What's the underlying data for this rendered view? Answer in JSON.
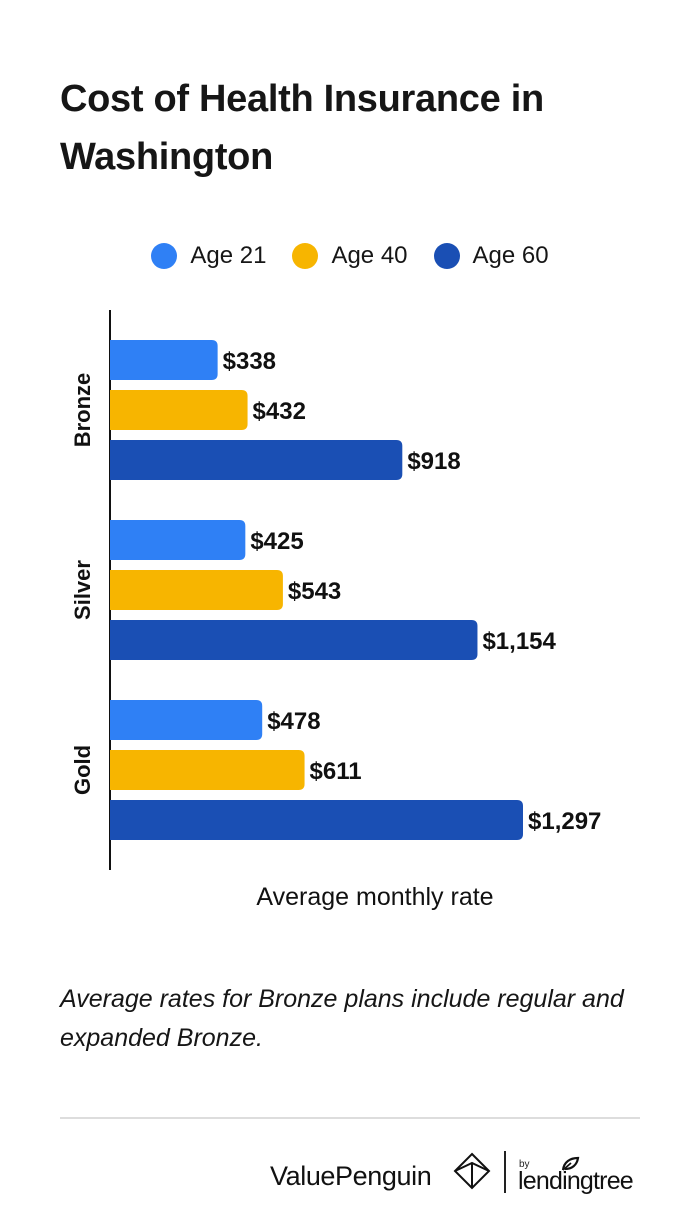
{
  "title": "Cost of Health Insurance in Washington",
  "note": "Average rates for Bronze plans include regular and expanded Bronze.",
  "footer": {
    "brand": "ValuePenguin",
    "by": "by",
    "partner": "lendingtree"
  },
  "colors": {
    "age21": "#2f80f5",
    "age40": "#f7b500",
    "age60": "#1a4fb4",
    "axis": "#111111",
    "divider": "#dddddd"
  },
  "chart_data": {
    "type": "bar",
    "orientation": "horizontal",
    "categories": [
      "Bronze",
      "Silver",
      "Gold"
    ],
    "series": [
      {
        "name": "Age 21",
        "values": [
          338,
          425,
          478
        ],
        "labels": [
          "$338",
          "$425",
          "$478"
        ],
        "color": "#2f80f5"
      },
      {
        "name": "Age 40",
        "values": [
          432,
          543,
          611
        ],
        "labels": [
          "$432",
          "$543",
          "$611"
        ],
        "color": "#f7b500"
      },
      {
        "name": "Age 60",
        "values": [
          918,
          1154,
          1297
        ],
        "labels": [
          "$918",
          "$1,154",
          "$1,297"
        ],
        "color": "#1a4fb4"
      }
    ],
    "xlabel": "Average monthly rate",
    "ylabel": "",
    "xlim": [
      0,
      1300
    ],
    "legend": "top-center",
    "grid": false
  }
}
